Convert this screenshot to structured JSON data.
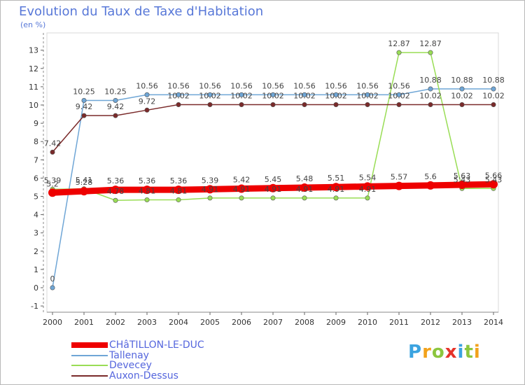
{
  "chart_data": {
    "type": "line",
    "title": "Evolution du Taux de Taxe d'Habitation",
    "subtitle": "(en %)",
    "x": [
      2000,
      2001,
      2002,
      2003,
      2004,
      2005,
      2006,
      2007,
      2008,
      2009,
      2010,
      2011,
      2012,
      2013,
      2014
    ],
    "ylim": [
      -1,
      13
    ],
    "yticks": [
      -1,
      0,
      1,
      2,
      3,
      4,
      5,
      6,
      7,
      8,
      9,
      10,
      11,
      12,
      13
    ],
    "series": [
      {
        "name": "CHâTILLON-LE-DUC",
        "color": "#ee0000",
        "values": [
          5.2,
          5.28,
          5.36,
          5.36,
          5.36,
          5.39,
          5.42,
          5.45,
          5.48,
          5.51,
          5.54,
          5.57,
          5.6,
          5.63,
          5.66
        ],
        "labels": [
          "5.2",
          "5.28",
          "5.36",
          "5.36",
          "5.36",
          "5.39",
          "5.42",
          "5.45",
          "5.48",
          "5.51",
          "5.54",
          "5.57",
          "5.6",
          "5.63",
          "5.66"
        ]
      },
      {
        "name": "Tallenay",
        "color": "#6fa6d6",
        "values": [
          0,
          10.25,
          10.25,
          10.56,
          10.56,
          10.56,
          10.56,
          10.56,
          10.56,
          10.56,
          10.56,
          10.56,
          10.88,
          10.88,
          10.88
        ],
        "labels": [
          "0",
          "10.25",
          "10.25",
          "10.56",
          "10.56",
          "10.56",
          "10.56",
          "10.56",
          "10.56",
          "10.56",
          "10.56",
          "10.56",
          "10.88",
          "10.88",
          "10.88"
        ]
      },
      {
        "name": "Devecey",
        "color": "#99dd55",
        "values": [
          5.39,
          5.41,
          4.78,
          4.81,
          4.81,
          4.91,
          4.91,
          4.91,
          4.91,
          4.91,
          4.91,
          12.87,
          12.87,
          5.43,
          5.43
        ],
        "labels": [
          "5.39",
          "5.41",
          "4.78",
          "4.81",
          "4.81",
          "4.91",
          "4.91",
          "4.91",
          "4.91",
          "4.91",
          "4.91",
          "12.87",
          "12.87",
          "5.43",
          "5.43"
        ]
      },
      {
        "name": "Auxon-Dessus",
        "color": "#7a2a2a",
        "values": [
          7.42,
          9.42,
          9.42,
          9.72,
          10.02,
          10.02,
          10.02,
          10.02,
          10.02,
          10.02,
          10.02,
          10.02,
          10.02,
          10.02,
          10.02
        ],
        "labels": [
          "7.42",
          "9.42",
          "9.42",
          "9.72",
          "10.02",
          "10.02",
          "10.02",
          "10.02",
          "10.02",
          "10.02",
          "10.02",
          "10.02",
          "10.02",
          "10.02",
          "10.02"
        ]
      }
    ],
    "legend_position": "bottom-left",
    "grid": false
  },
  "logo": {
    "letters": [
      "P",
      "r",
      "o",
      "x",
      "i",
      "t",
      "i"
    ],
    "colors": [
      "#3ba3e0",
      "#f2a21b",
      "#8cc63e",
      "#e6332a",
      "#3ba3e0",
      "#8cc63e",
      "#f2a21b"
    ]
  }
}
